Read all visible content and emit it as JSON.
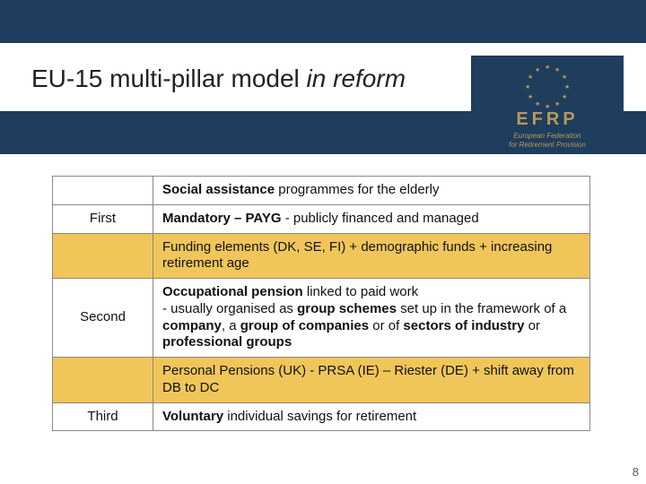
{
  "header": {
    "title_plain": "EU-15 multi-pillar model ",
    "title_italic": "in reform"
  },
  "logo": {
    "acronym": "EFRP",
    "sub1": "European Federation",
    "sub2": "for Retirement Provision"
  },
  "colors": {
    "band": "#1f3d5c",
    "highlight": "#f0c65a",
    "gold": "#b7995c"
  },
  "rows": [
    {
      "label": "",
      "highlight": false,
      "text": "<span class='bold'>Social assistance</span> programmes for the elderly"
    },
    {
      "label": "First",
      "highlight": false,
      "text": "<span class='bold'>Mandatory – PAYG</span> - publicly financed and managed"
    },
    {
      "label": "",
      "highlight": true,
      "text": "Funding elements (DK, SE, FI) + demographic funds + increasing retirement age"
    },
    {
      "label": "Second",
      "highlight": false,
      "text": "<span class='bold'>Occupational pension</span> linked to paid work<br>- usually organised as <span class='bold'>group schemes</span> set up in the framework of a <span class='bold'>company</span>, a <span class='bold'>group of companies</span> or of <span class='bold'>sectors of industry</span> or <span class='bold'>professional groups</span>"
    },
    {
      "label": "",
      "highlight": true,
      "text": "Personal Pensions (UK) -  PRSA (IE) – Riester (DE) + shift away from DB to DC"
    },
    {
      "label": "Third",
      "highlight": false,
      "text": "<span class='bold'>Voluntary</span> individual savings for retirement"
    }
  ],
  "page_number": "8"
}
